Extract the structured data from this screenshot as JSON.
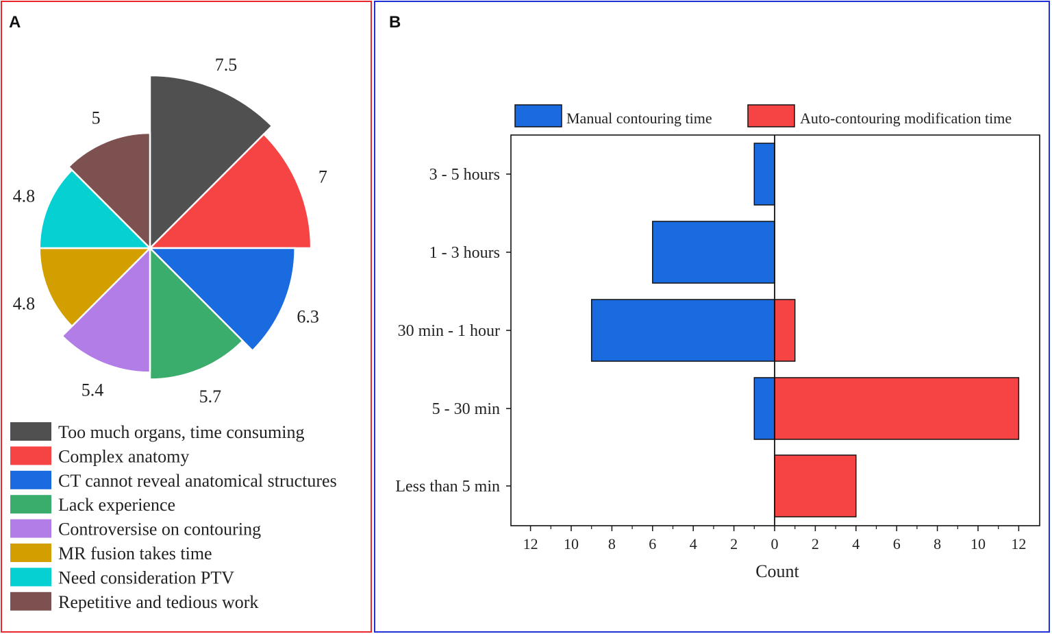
{
  "panels": {
    "a_label": "A",
    "b_label": "B"
  },
  "chart_data": [
    {
      "type": "pie",
      "variant": "rose",
      "value_labels": [
        "7.5",
        "7",
        "6.3",
        "5.7",
        "5.4",
        "4.8",
        "4.8",
        "5"
      ],
      "slices": [
        {
          "label": "Too much organs, time consuming",
          "value": 7.5,
          "color": "#505050"
        },
        {
          "label": "Complex anatomy",
          "value": 7,
          "color": "#f64444"
        },
        {
          "label": "CT cannot reveal anatomical structures",
          "value": 6.3,
          "color": "#1a6be0"
        },
        {
          "label": "Lack experience",
          "value": 5.7,
          "color": "#3aad6c"
        },
        {
          "label": "Controversise on contouring",
          "value": 5.4,
          "color": "#b27de6"
        },
        {
          "label": "MR fusion takes time",
          "value": 4.8,
          "color": "#d29e00"
        },
        {
          "label": "Need consideration PTV",
          "value": 4.8,
          "color": "#06d0d2"
        },
        {
          "label": "Repetitive and tedious work",
          "value": 5,
          "color": "#7d5150"
        }
      ],
      "legend_position": "bottom"
    },
    {
      "type": "bar",
      "orientation": "horizontal",
      "layout": "diverging",
      "categories": [
        "3 - 5 hours",
        "1 - 3 hours",
        "30 min - 1 hour",
        "5 - 30 min",
        "Less than 5 min"
      ],
      "series": [
        {
          "name": "Manual contouring time",
          "values": [
            1,
            6,
            9,
            1,
            0
          ],
          "color": "#1a6be0",
          "side": "left"
        },
        {
          "name": "Auto-contouring modification time",
          "values": [
            0,
            0,
            1,
            12,
            4
          ],
          "color": "#f64444",
          "side": "right"
        }
      ],
      "xlabel": "Count",
      "xticks": [
        "12",
        "10",
        "8",
        "6",
        "4",
        "2",
        "0",
        "2",
        "4",
        "6",
        "8",
        "10",
        "12"
      ],
      "xlim": [
        -13,
        13
      ],
      "legend_position": "top"
    }
  ]
}
